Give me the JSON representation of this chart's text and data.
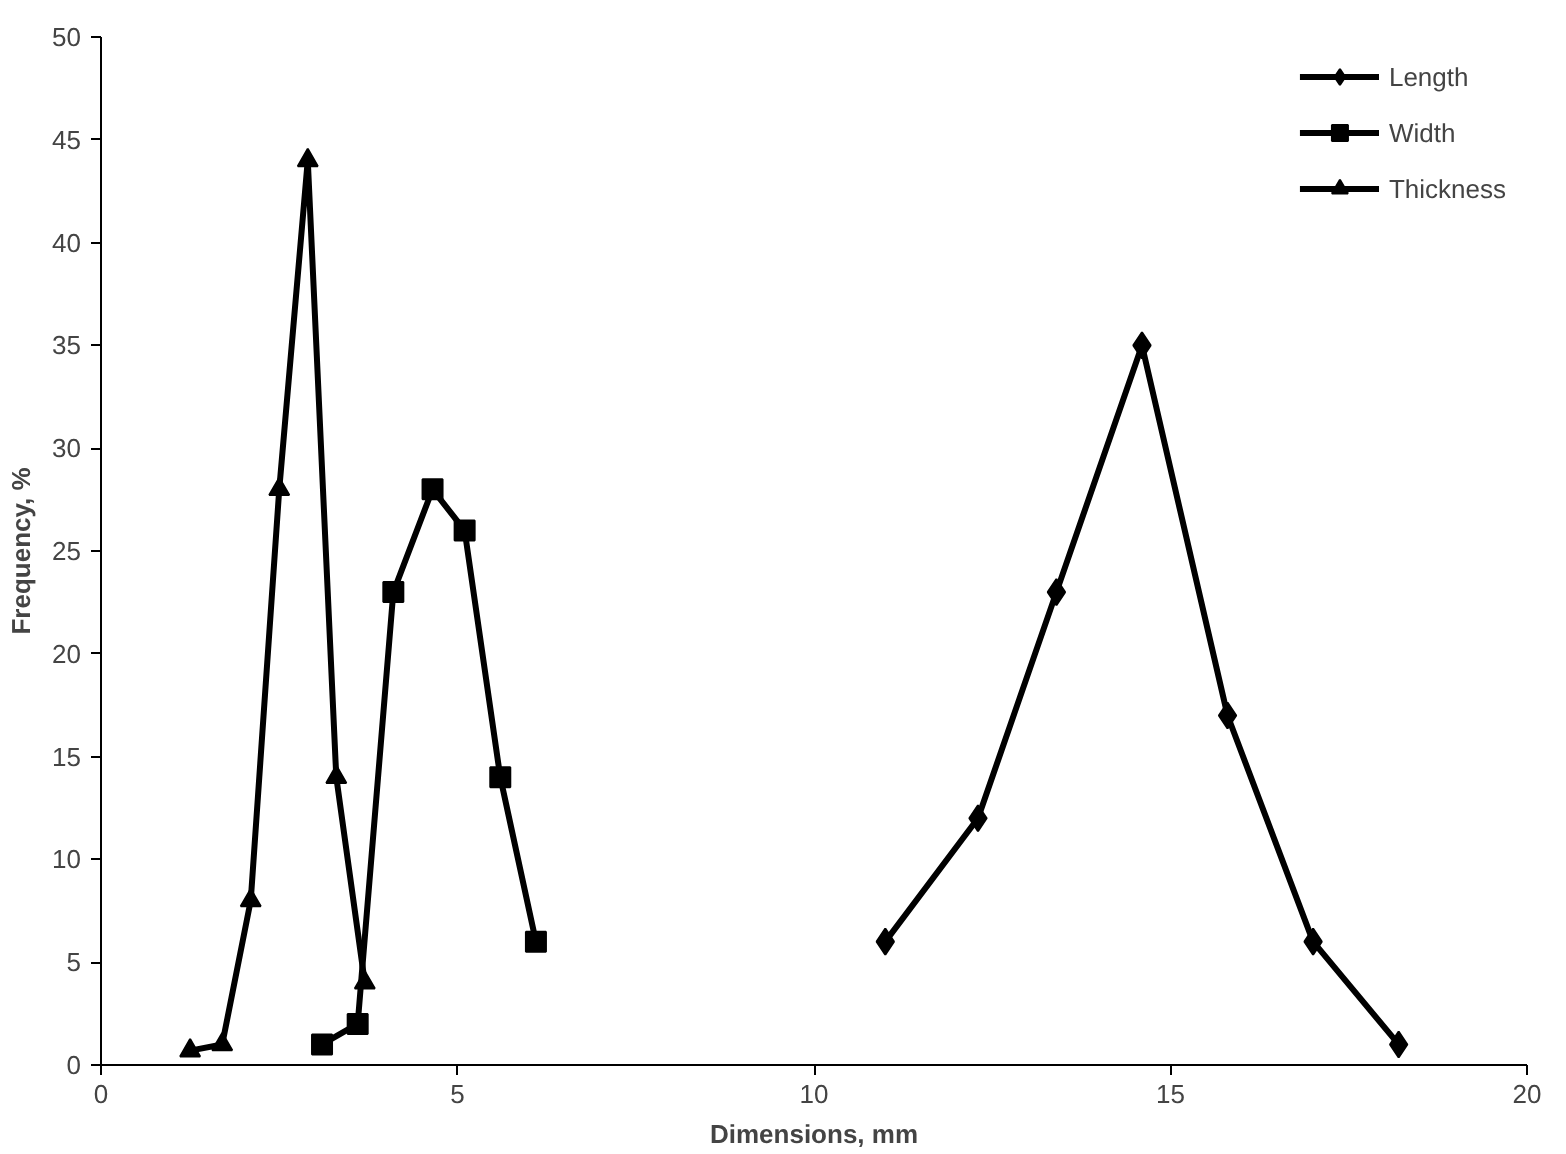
{
  "chart_data": {
    "type": "line",
    "xlabel": "Dimensions, mm",
    "ylabel": "Frequency, %",
    "xlim": [
      0,
      20
    ],
    "ylim": [
      0,
      50
    ],
    "xticks": [
      0,
      5,
      10,
      15,
      20
    ],
    "yticks": [
      0,
      5,
      10,
      15,
      20,
      25,
      30,
      35,
      40,
      45,
      50
    ],
    "grid": false,
    "legend": "top right",
    "line_style": "solid",
    "series": [
      {
        "name": "Length",
        "color": "#000000",
        "marker": "diamond",
        "x": [
          11.0,
          12.3,
          13.4,
          14.6,
          15.8,
          17.0,
          18.2
        ],
        "values": [
          6,
          12,
          23,
          35,
          17,
          6,
          1
        ]
      },
      {
        "name": "Width",
        "color": "#000000",
        "marker": "square",
        "x": [
          3.1,
          3.6,
          4.1,
          4.65,
          5.1,
          5.6,
          6.1
        ],
        "values": [
          1,
          2,
          23,
          28,
          26,
          14,
          6
        ]
      },
      {
        "name": "Thickness",
        "color": "#000000",
        "marker": "triangle",
        "x": [
          1.25,
          1.7,
          2.1,
          2.5,
          2.9,
          3.3,
          3.7
        ],
        "values": [
          0.7,
          1,
          8,
          28,
          44,
          14,
          4
        ]
      }
    ]
  }
}
